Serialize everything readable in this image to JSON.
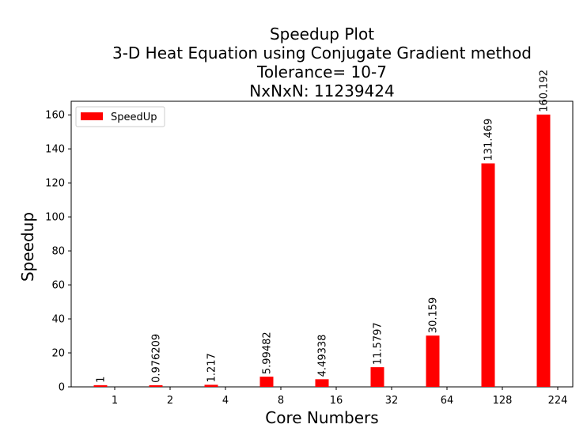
{
  "chart_data": {
    "type": "bar",
    "title_lines": [
      "Speedup Plot",
      "3-D Heat Equation using Conjugate Gradient method",
      "Tolerance= 10-7",
      "NxNxN: 11239424"
    ],
    "xlabel": "Core Numbers",
    "ylabel": "Speedup",
    "categories": [
      "1",
      "2",
      "4",
      "8",
      "16",
      "32",
      "64",
      "128",
      "224"
    ],
    "series": [
      {
        "name": "SpeedUp",
        "color": "#ff0000",
        "values": [
          1,
          0.976209,
          1.217,
          5.99482,
          4.49338,
          11.5797,
          30.159,
          131.469,
          160.192
        ],
        "value_labels": [
          "1",
          "0.976209",
          "1.217",
          "5.99482",
          "4.49338",
          "11.5797",
          "30.159",
          "131.469",
          "160.192"
        ]
      }
    ],
    "ylim": [
      0,
      168
    ],
    "yticks": [
      0,
      20,
      40,
      60,
      80,
      100,
      120,
      140,
      160
    ],
    "grid": false,
    "legend_position": "top-left"
  }
}
